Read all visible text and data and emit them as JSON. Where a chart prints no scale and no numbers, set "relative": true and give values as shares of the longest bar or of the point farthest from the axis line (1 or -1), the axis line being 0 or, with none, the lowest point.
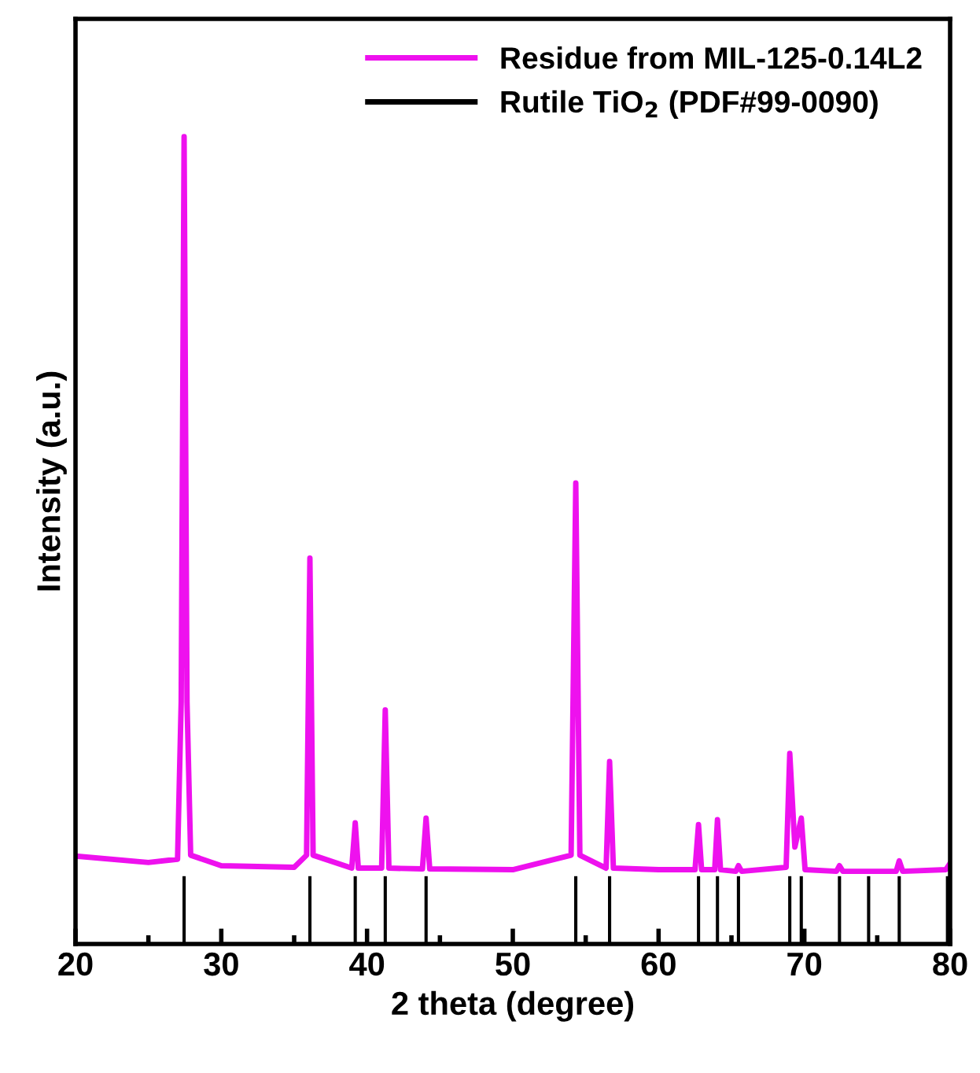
{
  "chart_data": {
    "type": "line",
    "relative": true,
    "xlabel": "2 theta (degree)",
    "ylabel": "Intensity (a.u.)",
    "xlim": [
      20,
      80
    ],
    "xticks": [
      20,
      30,
      40,
      50,
      60,
      70,
      80
    ],
    "tick_labels": "x",
    "grid": false,
    "legend": "top right",
    "series": [
      {
        "name": "Residue from MIL-125-0.14L2",
        "color": "#ee11ee",
        "x": [
          20,
          25,
          27.0,
          27.25,
          27.45,
          27.65,
          27.9,
          30,
          35,
          35.85,
          36.08,
          36.3,
          38.95,
          39.19,
          39.4,
          41.0,
          41.25,
          41.5,
          43.8,
          44.05,
          44.3,
          50,
          54.0,
          54.32,
          54.6,
          56.4,
          56.64,
          56.9,
          60,
          62.5,
          62.74,
          62.95,
          63.85,
          64.04,
          64.25,
          65.3,
          65.48,
          65.7,
          68.75,
          69.0,
          69.35,
          69.79,
          70.05,
          72.2,
          72.41,
          72.65,
          76.3,
          76.51,
          76.75,
          79.7,
          80
        ],
        "values": [
          0.109,
          0.101,
          0.105,
          0.3,
          1.0,
          0.3,
          0.11,
          0.097,
          0.095,
          0.11,
          0.478,
          0.11,
          0.094,
          0.15,
          0.094,
          0.094,
          0.29,
          0.094,
          0.093,
          0.156,
          0.093,
          0.092,
          0.11,
          0.571,
          0.11,
          0.094,
          0.226,
          0.094,
          0.092,
          0.092,
          0.148,
          0.092,
          0.092,
          0.154,
          0.092,
          0.09,
          0.097,
          0.09,
          0.095,
          0.236,
          0.12,
          0.156,
          0.092,
          0.09,
          0.097,
          0.09,
          0.09,
          0.103,
          0.09,
          0.092,
          0.1
        ]
      },
      {
        "name": "Rutile TiO$_{2}$ (PDF#99-0090)",
        "color": "#000000",
        "type": "bar",
        "x": [
          27.45,
          36.08,
          39.19,
          41.25,
          44.05,
          54.32,
          56.64,
          62.74,
          64.04,
          65.48,
          69.0,
          69.79,
          72.41,
          74.41,
          76.51,
          79.82
        ],
        "values": [
          0.084,
          0.084,
          0.084,
          0.084,
          0.084,
          0.084,
          0.084,
          0.084,
          0.084,
          0.084,
          0.084,
          0.084,
          0.084,
          0.084,
          0.084,
          0.084
        ]
      }
    ]
  }
}
